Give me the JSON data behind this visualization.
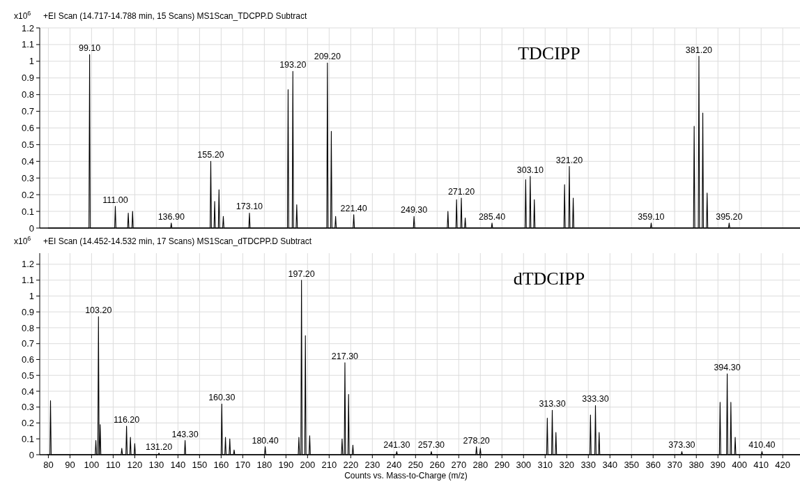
{
  "chart_data": [
    {
      "type": "line",
      "title": "+EI Scan (14.717-14.788 min, 15 Scans) MS1Scan_TDCPP.D  Subtract",
      "ylabel": "x10$^{6}$",
      "xlim": [
        76,
        428
      ],
      "ylim": [
        0,
        1.2
      ],
      "xticks": [
        80,
        90,
        100,
        110,
        120,
        130,
        140,
        150,
        160,
        170,
        180,
        190,
        200,
        210,
        220,
        230,
        240,
        250,
        260,
        270,
        280,
        290,
        300,
        310,
        320,
        330,
        340,
        350,
        360,
        370,
        380,
        390,
        400,
        410,
        420
      ],
      "yticks": [
        0,
        0.1,
        0.2,
        0.3,
        0.4,
        0.5,
        0.6,
        0.7,
        0.8,
        0.9,
        1,
        1.1,
        1.2
      ],
      "grid": true,
      "tick_labels": "y",
      "series": [
        {
          "color": "#000000",
          "x": [
            80,
            98.8,
            99.1,
            99.4,
            110.7,
            111,
            111.3,
            116.7,
            117,
            117.3,
            118.7,
            119,
            119.3,
            136.6,
            136.9,
            137.2,
            154.9,
            155.2,
            155.5,
            156.7,
            157,
            157.3,
            158.7,
            159,
            159.3,
            160.7,
            161,
            161.3,
            172.8,
            173.1,
            173.4,
            190.7,
            191,
            191.3,
            192.9,
            193.2,
            193.5,
            194.7,
            195,
            195.3,
            208.9,
            209.2,
            209.5,
            210.7,
            211,
            211.3,
            212.7,
            213,
            213.3,
            221.1,
            221.4,
            221.7,
            249,
            249.3,
            249.6,
            264.7,
            265,
            265.3,
            268.7,
            269,
            269.3,
            270.9,
            271.2,
            271.5,
            272.7,
            273,
            273.3,
            285.1,
            285.4,
            285.7,
            300.7,
            301,
            301.3,
            302.8,
            303.1,
            303.4,
            304.7,
            305,
            305.3,
            318.7,
            319,
            319.3,
            320.9,
            321.2,
            321.5,
            322.7,
            323,
            323.3,
            358.8,
            359.1,
            359.4,
            378.7,
            379,
            379.3,
            380.9,
            381.2,
            381.5,
            382.7,
            383,
            383.3,
            384.7,
            385,
            385.3,
            394.9,
            395.2,
            395.5,
            428
          ],
          "values": [
            0,
            0,
            1.04,
            0,
            0,
            0.13,
            0,
            0,
            0.09,
            0,
            0,
            0.1,
            0,
            0,
            0.03,
            0,
            0,
            0.4,
            0,
            0,
            0.16,
            0,
            0,
            0.23,
            0,
            0,
            0.07,
            0,
            0,
            0.09,
            0,
            0,
            0.83,
            0,
            0,
            0.94,
            0,
            0,
            0.14,
            0,
            0,
            0.99,
            0,
            0,
            0.58,
            0,
            0,
            0.07,
            0,
            0,
            0.08,
            0,
            0,
            0.07,
            0,
            0,
            0.1,
            0,
            0,
            0.17,
            0,
            0,
            0.18,
            0,
            0,
            0.06,
            0,
            0,
            0.03,
            0,
            0,
            0.29,
            0,
            0,
            0.31,
            0,
            0,
            0.17,
            0,
            0,
            0.26,
            0,
            0,
            0.37,
            0,
            0,
            0.18,
            0,
            0,
            0.03,
            0,
            0,
            0.61,
            0,
            0,
            1.03,
            0,
            0,
            0.69,
            0,
            0,
            0.21,
            0,
            0,
            0.03,
            0,
            0
          ]
        }
      ],
      "annotations": [
        "TDCIPP",
        {
          "text": "99.10",
          "x": 99.1,
          "y": 1.04
        },
        {
          "text": "111.00",
          "x": 111,
          "y": 0.13
        },
        {
          "text": "136.90",
          "x": 136.9,
          "y": 0.03
        },
        {
          "text": "155.20",
          "x": 155.2,
          "y": 0.4
        },
        {
          "text": "173.10",
          "x": 173.1,
          "y": 0.09
        },
        {
          "text": "193.20",
          "x": 193.2,
          "y": 0.94
        },
        {
          "text": "209.20",
          "x": 209.2,
          "y": 0.99
        },
        {
          "text": "221.40",
          "x": 221.4,
          "y": 0.08
        },
        {
          "text": "249.30",
          "x": 249.3,
          "y": 0.07
        },
        {
          "text": "271.20",
          "x": 271.2,
          "y": 0.18
        },
        {
          "text": "285.40",
          "x": 285.4,
          "y": 0.03
        },
        {
          "text": "303.10",
          "x": 303.1,
          "y": 0.31
        },
        {
          "text": "321.20",
          "x": 321.2,
          "y": 0.37
        },
        {
          "text": "359.10",
          "x": 359.1,
          "y": 0.03
        },
        {
          "text": "381.20",
          "x": 381.2,
          "y": 1.03
        },
        {
          "text": "395.20",
          "x": 395.2,
          "y": 0.03
        }
      ]
    },
    {
      "type": "line",
      "title": "+EI Scan (14.452-14.532 min, 17 Scans) MS1Scan_dTDCPP.D  Subtract",
      "ylabel": "x10$^{6}$",
      "xlabel": "Counts vs. Mass-to-Charge (m/z)",
      "xlim": [
        76,
        428
      ],
      "ylim": [
        0,
        1.27
      ],
      "xticks": [
        80,
        90,
        100,
        110,
        120,
        130,
        140,
        150,
        160,
        170,
        180,
        190,
        200,
        210,
        220,
        230,
        240,
        250,
        260,
        270,
        280,
        290,
        300,
        310,
        320,
        330,
        340,
        350,
        360,
        370,
        380,
        390,
        400,
        410,
        420
      ],
      "yticks": [
        0,
        0.1,
        0.2,
        0.3,
        0.4,
        0.5,
        0.6,
        0.7,
        0.8,
        0.9,
        1,
        1.1,
        1.2
      ],
      "grid": true,
      "series": [
        {
          "color": "#000000",
          "x": [
            79.5,
            80.7,
            81,
            81.3,
            101.7,
            102,
            102.3,
            102.9,
            103.2,
            103.5,
            103.7,
            104,
            104.3,
            113.7,
            114,
            114.3,
            115.9,
            116.2,
            116.5,
            117.7,
            118,
            118.3,
            119.7,
            120,
            120.3,
            130.9,
            131.2,
            131.5,
            143,
            143.3,
            143.6,
            160,
            160.3,
            160.6,
            161.7,
            162,
            162.3,
            163.7,
            164,
            164.3,
            165.7,
            166,
            166.3,
            180.1,
            180.4,
            180.7,
            195.7,
            196,
            196.3,
            196.9,
            197.2,
            197.5,
            198.7,
            199,
            199.3,
            200.7,
            201,
            201.3,
            215.7,
            216,
            216.3,
            217,
            217.3,
            217.6,
            218.7,
            219,
            219.3,
            220.7,
            221,
            221.3,
            241,
            241.3,
            241.6,
            257,
            257.3,
            257.6,
            277.9,
            278.2,
            278.5,
            279.7,
            280,
            280.3,
            310.7,
            311,
            311.3,
            313,
            313.3,
            313.6,
            314.7,
            315,
            315.3,
            330.7,
            331,
            331.3,
            333,
            333.3,
            333.6,
            334.7,
            335,
            335.3,
            373,
            373.3,
            373.6,
            390.7,
            391,
            391.3,
            394,
            394.3,
            394.6,
            395.7,
            396,
            396.3,
            397.7,
            398,
            398.3,
            410.1,
            410.4,
            410.7,
            428
          ],
          "values": [
            0,
            0,
            0.34,
            0,
            0,
            0.09,
            0,
            0,
            0.87,
            0,
            0,
            0.19,
            0,
            0,
            0.04,
            0,
            0,
            0.18,
            0,
            0,
            0.11,
            0,
            0,
            0.07,
            0,
            0,
            0.01,
            0,
            0,
            0.09,
            0,
            0,
            0.32,
            0,
            0,
            0.11,
            0,
            0,
            0.1,
            0,
            0,
            0.03,
            0,
            0,
            0.05,
            0,
            0,
            0.11,
            0,
            0,
            1.1,
            0,
            0,
            0.75,
            0,
            0,
            0.12,
            0,
            0,
            0.1,
            0,
            0,
            0.58,
            0,
            0,
            0.38,
            0,
            0,
            0.06,
            0,
            0,
            0.02,
            0,
            0,
            0.02,
            0,
            0,
            0.05,
            0,
            0,
            0.04,
            0,
            0,
            0.23,
            0,
            0,
            0.28,
            0,
            0,
            0.14,
            0,
            0,
            0.25,
            0,
            0,
            0.31,
            0,
            0,
            0.14,
            0,
            0,
            0.02,
            0,
            0,
            0.33,
            0,
            0,
            0.51,
            0,
            0,
            0.33,
            0,
            0,
            0.11,
            0,
            0,
            0.02,
            0,
            0
          ]
        }
      ],
      "annotations": [
        "dTDCIPP",
        {
          "text": "103.20",
          "x": 103.2,
          "y": 0.87
        },
        {
          "text": "116.20",
          "x": 116.2,
          "y": 0.18
        },
        {
          "text": "131.20",
          "x": 131.2,
          "y": 0.01
        },
        {
          "text": "143.30",
          "x": 143.3,
          "y": 0.09
        },
        {
          "text": "160.30",
          "x": 160.3,
          "y": 0.32
        },
        {
          "text": "180.40",
          "x": 180.4,
          "y": 0.05
        },
        {
          "text": "197.20",
          "x": 197.2,
          "y": 1.1
        },
        {
          "text": "217.30",
          "x": 217.3,
          "y": 0.58
        },
        {
          "text": "241.30",
          "x": 241.3,
          "y": 0.02
        },
        {
          "text": "257.30",
          "x": 257.3,
          "y": 0.02
        },
        {
          "text": "278.20",
          "x": 278.2,
          "y": 0.05
        },
        {
          "text": "313.30",
          "x": 313.3,
          "y": 0.28
        },
        {
          "text": "333.30",
          "x": 333.3,
          "y": 0.31
        },
        {
          "text": "373.30",
          "x": 373.3,
          "y": 0.02
        },
        {
          "text": "394.30",
          "x": 394.3,
          "y": 0.51
        },
        {
          "text": "410.40",
          "x": 410.4,
          "y": 0.02
        }
      ]
    }
  ]
}
